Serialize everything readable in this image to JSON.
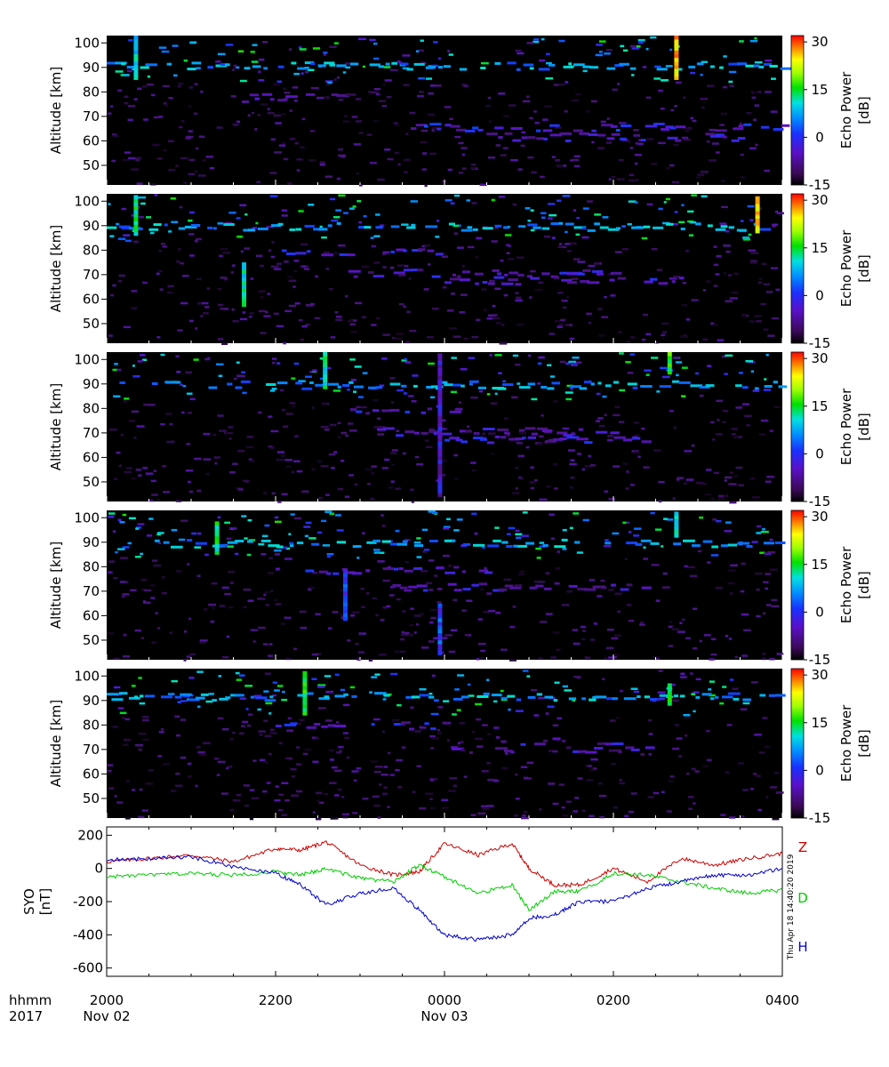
{
  "chart_data": [
    {
      "type": "heatmap",
      "panel": 1,
      "ylabel": "Altitude [km]",
      "yticks": [
        50,
        60,
        70,
        80,
        90,
        100
      ],
      "ylim": [
        42,
        103
      ],
      "colorbar": {
        "label": "Echo Power [dB]",
        "ticks": [
          -15,
          0,
          15,
          30
        ],
        "range": [
          -15,
          32
        ]
      },
      "echo_layers": [
        {
          "alt": 91,
          "start": 0.0,
          "end": 1.0,
          "power": 5
        },
        {
          "alt": 78,
          "start": 0.2,
          "end": 0.4,
          "power": -8
        },
        {
          "alt": 66,
          "start": 0.45,
          "end": 1.0,
          "power": -4
        },
        {
          "alt": 62,
          "start": 0.55,
          "end": 0.95,
          "power": -6
        }
      ],
      "echo_columns": [
        {
          "time": 0.04,
          "alt_from": 85,
          "alt_to": 102,
          "power": 8
        },
        {
          "time": 0.84,
          "alt_from": 85,
          "alt_to": 102,
          "power": 25
        }
      ]
    },
    {
      "type": "heatmap",
      "panel": 2,
      "ylabel": "Altitude [km]",
      "yticks": [
        50,
        60,
        70,
        80,
        90,
        100
      ],
      "ylim": [
        42,
        103
      ],
      "colorbar": {
        "label": "Echo Power [dB]",
        "ticks": [
          -15,
          0,
          15,
          30
        ],
        "range": [
          -15,
          32
        ]
      },
      "echo_layers": [
        {
          "alt": 90,
          "start": 0.0,
          "end": 1.0,
          "power": 5
        },
        {
          "alt": 80,
          "start": 0.25,
          "end": 0.5,
          "power": -5
        },
        {
          "alt": 71,
          "start": 0.35,
          "end": 0.75,
          "power": -6
        },
        {
          "alt": 68,
          "start": 0.5,
          "end": 0.85,
          "power": -5
        }
      ],
      "echo_columns": [
        {
          "time": 0.04,
          "alt_from": 86,
          "alt_to": 102,
          "power": 12
        },
        {
          "time": 0.2,
          "alt_from": 57,
          "alt_to": 75,
          "power": 10
        },
        {
          "time": 0.96,
          "alt_from": 87,
          "alt_to": 102,
          "power": 25
        }
      ]
    },
    {
      "type": "heatmap",
      "panel": 3,
      "ylabel": "Altitude [km]",
      "yticks": [
        50,
        60,
        70,
        80,
        90,
        100
      ],
      "ylim": [
        42,
        103
      ],
      "colorbar": {
        "label": "Echo Power [dB]",
        "ticks": [
          -15,
          0,
          15,
          30
        ],
        "range": [
          -15,
          32
        ]
      },
      "echo_layers": [
        {
          "alt": 90,
          "start": 0.0,
          "end": 1.0,
          "power": 5
        },
        {
          "alt": 80,
          "start": 0.35,
          "end": 0.55,
          "power": -5
        },
        {
          "alt": 71,
          "start": 0.4,
          "end": 0.75,
          "power": -6
        },
        {
          "alt": 68,
          "start": 0.5,
          "end": 0.8,
          "power": -5
        }
      ],
      "echo_columns": [
        {
          "time": 0.32,
          "alt_from": 88,
          "alt_to": 102,
          "power": 10
        },
        {
          "time": 0.49,
          "alt_from": 44,
          "alt_to": 102,
          "power": -5
        },
        {
          "time": 0.83,
          "alt_from": 94,
          "alt_to": 102,
          "power": 15
        }
      ]
    },
    {
      "type": "heatmap",
      "panel": 4,
      "ylabel": "Altitude [km]",
      "yticks": [
        50,
        60,
        70,
        80,
        90,
        100
      ],
      "ylim": [
        42,
        103
      ],
      "colorbar": {
        "label": "Echo Power [dB]",
        "ticks": [
          -15,
          0,
          15,
          30
        ],
        "range": [
          -15,
          32
        ]
      },
      "echo_layers": [
        {
          "alt": 90,
          "start": 0.0,
          "end": 1.0,
          "power": 5
        },
        {
          "alt": 79,
          "start": 0.25,
          "end": 0.6,
          "power": -5
        },
        {
          "alt": 72,
          "start": 0.4,
          "end": 0.8,
          "power": -7
        }
      ],
      "echo_columns": [
        {
          "time": 0.16,
          "alt_from": 85,
          "alt_to": 98,
          "power": 12
        },
        {
          "time": 0.35,
          "alt_from": 58,
          "alt_to": 78,
          "power": 0
        },
        {
          "time": 0.49,
          "alt_from": 44,
          "alt_to": 65,
          "power": 0
        },
        {
          "time": 0.84,
          "alt_from": 92,
          "alt_to": 102,
          "power": 10
        }
      ]
    },
    {
      "type": "heatmap",
      "panel": 5,
      "ylabel": "Altitude [km]",
      "yticks": [
        50,
        60,
        70,
        80,
        90,
        100
      ],
      "ylim": [
        42,
        103
      ],
      "colorbar": {
        "label": "Echo Power [dB]",
        "ticks": [
          -15,
          0,
          15,
          30
        ],
        "range": [
          -15,
          32
        ]
      },
      "echo_layers": [
        {
          "alt": 92,
          "start": 0.0,
          "end": 1.0,
          "power": 5
        },
        {
          "alt": 80,
          "start": 0.25,
          "end": 0.5,
          "power": -5
        },
        {
          "alt": 74,
          "start": 0.55,
          "end": 0.75,
          "power": -6
        },
        {
          "alt": 70,
          "start": 0.5,
          "end": 0.8,
          "power": -7
        }
      ],
      "echo_columns": [
        {
          "time": 0.29,
          "alt_from": 84,
          "alt_to": 102,
          "power": 15
        },
        {
          "time": 0.83,
          "alt_from": 88,
          "alt_to": 97,
          "power": 12
        }
      ]
    },
    {
      "type": "line",
      "panel": 6,
      "ylabel": "SYO [nT]",
      "yticks": [
        -600,
        -400,
        -200,
        0,
        200
      ],
      "ylim": [
        -650,
        250
      ],
      "x_hours": [
        0,
        0.5,
        1,
        1.5,
        2,
        2.3,
        2.6,
        3,
        3.4,
        3.7,
        4,
        4.4,
        4.8,
        5,
        5.3,
        5.6,
        6,
        6.4,
        6.8,
        7.2,
        7.6,
        8
      ],
      "series": [
        {
          "name": "Z",
          "color": "#cc0000",
          "values": [
            40,
            60,
            80,
            40,
            120,
            110,
            160,
            20,
            -40,
            -20,
            150,
            80,
            150,
            0,
            -100,
            -100,
            0,
            -80,
            60,
            20,
            60,
            90
          ]
        },
        {
          "name": "D",
          "color": "#00cc00",
          "values": [
            -50,
            -40,
            -30,
            -40,
            -20,
            -40,
            0,
            -60,
            -80,
            20,
            -50,
            -150,
            -100,
            -250,
            -140,
            -140,
            -30,
            -40,
            -80,
            -120,
            -150,
            -130
          ]
        },
        {
          "name": "H",
          "color": "#0000cc",
          "values": [
            50,
            60,
            70,
            10,
            -30,
            -100,
            -220,
            -150,
            -120,
            -250,
            -400,
            -430,
            -400,
            -300,
            -280,
            -200,
            -200,
            -120,
            -80,
            -40,
            -40,
            0
          ]
        }
      ],
      "timestamp": "Thu Apr 18 14:40:20 2019"
    }
  ],
  "xaxis": {
    "row1_label": "hhmm",
    "row2_label": "2017",
    "ticks": [
      {
        "hour": 0,
        "time": "2000",
        "date": "Nov 02"
      },
      {
        "hour": 2,
        "time": "2200",
        "date": ""
      },
      {
        "hour": 4,
        "time": "0000",
        "date": "Nov 03"
      },
      {
        "hour": 6,
        "time": "0200",
        "date": ""
      },
      {
        "hour": 8,
        "time": "0400",
        "date": ""
      }
    ],
    "range_hours": [
      0,
      8
    ]
  }
}
